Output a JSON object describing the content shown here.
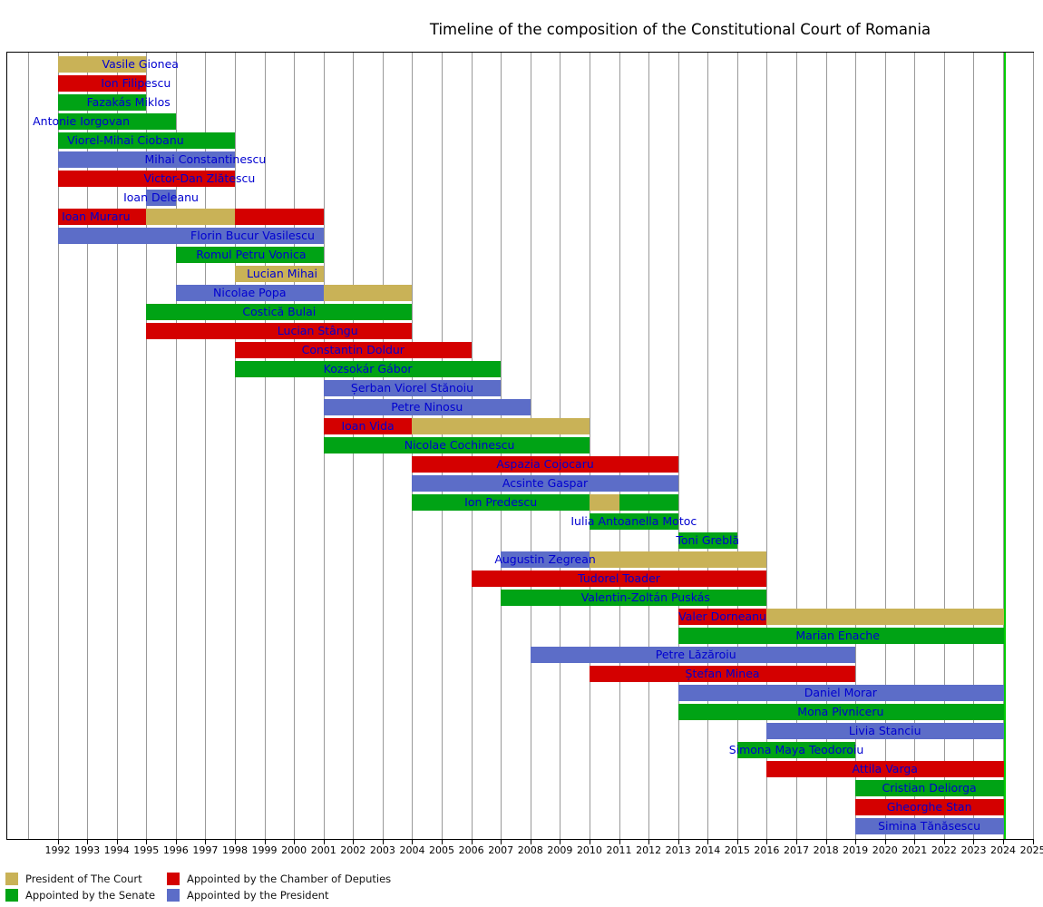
{
  "title": "Timeline of the composition of the Constitutional Court of Romania",
  "chart_data": {
    "type": "timeline-gantt",
    "x_axis": {
      "first_label": 1992,
      "last_label": 2025,
      "tick_step": 1,
      "grid_first": 1991,
      "grid_last": 2025
    },
    "present_year": 2024.07,
    "grid_on": true,
    "legend_position": "bottom-left",
    "colors": {
      "court_president": "#c9b257",
      "chamber": "#d40000",
      "senate": "#00a315",
      "president": "#5c6dc8",
      "now_line": "#00cc00",
      "bar_label_text": "#0000d0",
      "grid": "#999999",
      "axis": "#000000"
    },
    "legend": [
      {
        "key": "court_president",
        "label": "President of The Court",
        "col": 0,
        "row": 0
      },
      {
        "key": "chamber",
        "label": "Appointed by the Chamber of Deputies",
        "col": 1,
        "row": 0
      },
      {
        "key": "senate",
        "label": "Appointed by the Senate",
        "col": 0,
        "row": 1
      },
      {
        "key": "president",
        "label": "Appointed by the President",
        "col": 1,
        "row": 1
      }
    ],
    "judges": [
      {
        "name": "Vasile Gionea",
        "label_year": 1994.8,
        "segments": [
          {
            "from": 1992,
            "to": 1995,
            "by": "court_president"
          }
        ]
      },
      {
        "name": "Ion Filipescu",
        "label_year": 1994.65,
        "segments": [
          {
            "from": 1992,
            "to": 1995,
            "by": "chamber"
          }
        ]
      },
      {
        "name": "Fazakás Miklos",
        "label_year": 1994.4,
        "segments": [
          {
            "from": 1992,
            "to": 1995,
            "by": "senate"
          }
        ]
      },
      {
        "name": "Antonie Iorgovan",
        "label_year": 1992.8,
        "segments": [
          {
            "from": 1992,
            "to": 1996,
            "by": "senate"
          }
        ]
      },
      {
        "name": "Viorel-Mihai Ciobanu",
        "label_year": 1994.3,
        "segments": [
          {
            "from": 1992,
            "to": 1998,
            "by": "senate"
          }
        ]
      },
      {
        "name": "Mihai Constantinescu",
        "label_year": 1997.0,
        "segments": [
          {
            "from": 1992,
            "to": 1998,
            "by": "president"
          }
        ]
      },
      {
        "name": "Victor-Dan Zlătescu",
        "label_year": 1996.8,
        "segments": [
          {
            "from": 1992,
            "to": 1998,
            "by": "chamber"
          }
        ]
      },
      {
        "name": "Ioan Deleanu",
        "label_year": 1995.5,
        "segments": [
          {
            "from": 1995,
            "to": 1996,
            "by": "president"
          }
        ]
      },
      {
        "name": "Ioan Muraru",
        "label_year": 1993.3,
        "segments": [
          {
            "from": 1992,
            "to": 1995,
            "by": "chamber"
          },
          {
            "from": 1995,
            "to": 1998,
            "by": "court_president"
          },
          {
            "from": 1998,
            "to": 2001,
            "by": "chamber"
          }
        ]
      },
      {
        "name": "Florin Bucur Vasilescu",
        "label_year": 1998.6,
        "segments": [
          {
            "from": 1992,
            "to": 2001,
            "by": "president"
          }
        ]
      },
      {
        "name": "Romul Petru Vonica",
        "label_year": 1998.55,
        "segments": [
          {
            "from": 1996,
            "to": 2001,
            "by": "senate"
          }
        ]
      },
      {
        "name": "Lucian Mihai",
        "label_year": 1999.6,
        "segments": [
          {
            "from": 1998,
            "to": 2001,
            "by": "court_president"
          }
        ]
      },
      {
        "name": "Nicolae Popa",
        "label_year": 1998.5,
        "segments": [
          {
            "from": 1996,
            "to": 2001,
            "by": "president"
          },
          {
            "from": 2001,
            "to": 2004,
            "by": "court_president"
          }
        ]
      },
      {
        "name": "Costică Bulai",
        "label_year": 1999.5,
        "segments": [
          {
            "from": 1995,
            "to": 2004,
            "by": "senate"
          }
        ]
      },
      {
        "name": "Lucian Stângu",
        "label_year": 2000.8,
        "segments": [
          {
            "from": 1995,
            "to": 2004,
            "by": "chamber"
          }
        ]
      },
      {
        "name": "Constantin Doldur",
        "label_year": 2002.0,
        "segments": [
          {
            "from": 1998,
            "to": 2006,
            "by": "chamber"
          }
        ]
      },
      {
        "name": "Kozsokár Gábor",
        "label_year": 2002.5,
        "segments": [
          {
            "from": 1998,
            "to": 2007,
            "by": "senate"
          }
        ]
      },
      {
        "name": "Șerban Viorel Stănoiu",
        "label_year": 2004.0,
        "segments": [
          {
            "from": 2001,
            "to": 2007,
            "by": "president"
          }
        ]
      },
      {
        "name": "Petre Ninosu",
        "label_year": 2004.5,
        "segments": [
          {
            "from": 2001,
            "to": 2008,
            "by": "president"
          }
        ]
      },
      {
        "name": "Ioan Vida",
        "label_year": 2002.5,
        "segments": [
          {
            "from": 2001,
            "to": 2004,
            "by": "chamber"
          },
          {
            "from": 2004,
            "to": 2010,
            "by": "court_president"
          }
        ]
      },
      {
        "name": "Nicolae Cochinescu",
        "label_year": 2005.6,
        "segments": [
          {
            "from": 2001,
            "to": 2010,
            "by": "senate"
          }
        ]
      },
      {
        "name": "Aspazia Cojocaru",
        "label_year": 2008.5,
        "segments": [
          {
            "from": 2004,
            "to": 2013,
            "by": "chamber"
          }
        ]
      },
      {
        "name": "Acsinte Gaspar",
        "label_year": 2008.5,
        "segments": [
          {
            "from": 2004,
            "to": 2013,
            "by": "president"
          }
        ]
      },
      {
        "name": "Ion Predescu",
        "label_year": 2007.0,
        "segments": [
          {
            "from": 2004,
            "to": 2010,
            "by": "senate"
          },
          {
            "from": 2010,
            "to": 2011,
            "by": "court_president"
          },
          {
            "from": 2011,
            "to": 2013,
            "by": "senate"
          }
        ]
      },
      {
        "name": "Iulia Antoanella Motoc",
        "label_year": 2011.5,
        "segments": [
          {
            "from": 2010,
            "to": 2013,
            "by": "senate"
          }
        ]
      },
      {
        "name": "Toni Greblă",
        "label_year": 2014.0,
        "segments": [
          {
            "from": 2013,
            "to": 2015,
            "by": "senate"
          }
        ]
      },
      {
        "name": "Augustin Zegrean",
        "label_year": 2008.5,
        "segments": [
          {
            "from": 2007,
            "to": 2010,
            "by": "president"
          },
          {
            "from": 2010,
            "to": 2016,
            "by": "court_president"
          }
        ]
      },
      {
        "name": "Tudorel Toader",
        "label_year": 2011.0,
        "segments": [
          {
            "from": 2006,
            "to": 2016,
            "by": "chamber"
          }
        ]
      },
      {
        "name": "Valentin-Zoltán Puskás",
        "label_year": 2011.9,
        "segments": [
          {
            "from": 2007,
            "to": 2016,
            "by": "senate"
          }
        ]
      },
      {
        "name": "Valer Dorneanu",
        "label_year": 2014.5,
        "segments": [
          {
            "from": 2013,
            "to": 2016,
            "by": "chamber"
          },
          {
            "from": 2016,
            "to": "present",
            "by": "court_president"
          }
        ]
      },
      {
        "name": "Marian Enache",
        "label_year": 2018.4,
        "segments": [
          {
            "from": 2013,
            "to": "present",
            "by": "senate"
          }
        ]
      },
      {
        "name": "Petre Lăzăroiu",
        "label_year": 2013.6,
        "segments": [
          {
            "from": 2008,
            "to": 2019,
            "by": "president"
          }
        ]
      },
      {
        "name": "Ștefan Minea",
        "label_year": 2014.5,
        "segments": [
          {
            "from": 2010,
            "to": 2019,
            "by": "chamber"
          }
        ]
      },
      {
        "name": "Daniel Morar",
        "label_year": 2018.5,
        "segments": [
          {
            "from": 2013,
            "to": "present",
            "by": "president"
          }
        ]
      },
      {
        "name": "Mona Pivniceru",
        "label_year": 2018.5,
        "segments": [
          {
            "from": 2013,
            "to": "present",
            "by": "senate"
          }
        ]
      },
      {
        "name": "Livia Stanciu",
        "label_year": 2020.0,
        "segments": [
          {
            "from": 2016,
            "to": "present",
            "by": "president"
          }
        ]
      },
      {
        "name": "Simona Maya Teodoroiu",
        "label_year": 2017.0,
        "segments": [
          {
            "from": 2015,
            "to": 2019,
            "by": "senate"
          }
        ]
      },
      {
        "name": "Attila Varga",
        "label_year": 2020.0,
        "segments": [
          {
            "from": 2016,
            "to": "present",
            "by": "chamber"
          }
        ]
      },
      {
        "name": "Cristian Deliorga",
        "label_year": 2021.5,
        "segments": [
          {
            "from": 2019,
            "to": "present",
            "by": "senate"
          }
        ]
      },
      {
        "name": "Gheorghe Stan",
        "label_year": 2021.5,
        "segments": [
          {
            "from": 2019,
            "to": "present",
            "by": "chamber"
          }
        ]
      },
      {
        "name": "Simina Tănăsescu",
        "label_year": 2021.5,
        "segments": [
          {
            "from": 2019,
            "to": "present",
            "by": "president"
          }
        ]
      }
    ]
  }
}
